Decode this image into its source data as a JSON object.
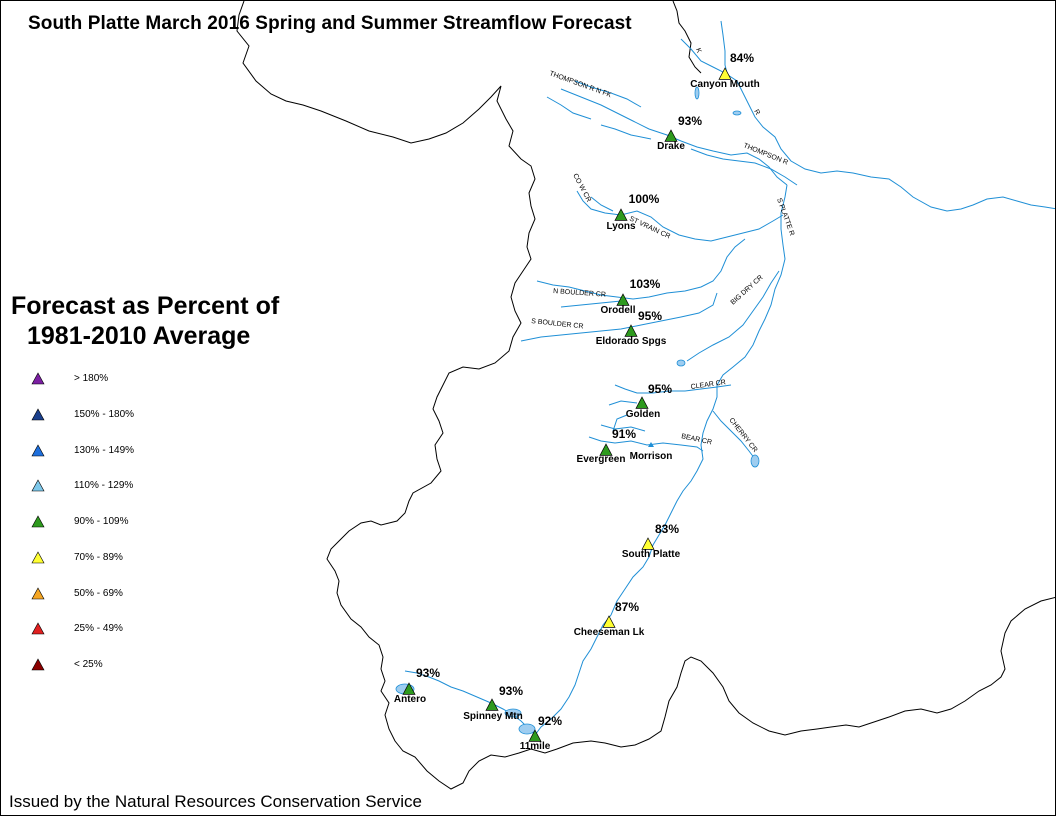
{
  "title": "South Platte March 2016 Spring and Summer Streamflow Forecast",
  "footer": "Issued by the Natural Resources Conservation Service",
  "legend": {
    "title_line1": "Forecast as Percent of",
    "title_line2": "1981-2010 Average",
    "items": [
      {
        "label": "> 180%",
        "color": "#7b1fa2"
      },
      {
        "label": "150% - 180%",
        "color": "#1a3f8c"
      },
      {
        "label": "130% - 149%",
        "color": "#1e6fdc"
      },
      {
        "label": "110% - 129%",
        "color": "#7ec8ea"
      },
      {
        "label": "90% - 109%",
        "color": "#2e9a1e"
      },
      {
        "label": "70% - 89%",
        "color": "#ffff33"
      },
      {
        "label": "50% - 69%",
        "color": "#f5a623"
      },
      {
        "label": "25% - 49%",
        "color": "#e02020"
      },
      {
        "label": "< 25%",
        "color": "#8b0000"
      }
    ]
  },
  "stations": [
    {
      "name": "Canyon Mouth",
      "percent": "84%",
      "category": "70% - 89%"
    },
    {
      "name": "Drake",
      "percent": "93%",
      "category": "90% - 109%"
    },
    {
      "name": "Lyons",
      "percent": "100%",
      "category": "90% - 109%"
    },
    {
      "name": "Orodell",
      "percent": "103%",
      "category": "90% - 109%"
    },
    {
      "name": "Eldorado Spgs",
      "percent": "95%",
      "category": "90% - 109%"
    },
    {
      "name": "Golden",
      "percent": "95%",
      "category": "90% - 109%"
    },
    {
      "name": "Evergreen",
      "percent": "91%",
      "category": "90% - 109%"
    },
    {
      "name": "Morrison",
      "percent": "",
      "category": ""
    },
    {
      "name": "South Platte",
      "percent": "83%",
      "category": "70% - 89%"
    },
    {
      "name": "Cheeseman Lk",
      "percent": "87%",
      "category": "70% - 89%"
    },
    {
      "name": "Antero",
      "percent": "93%",
      "category": "90% - 109%"
    },
    {
      "name": "Spinney Mtn",
      "percent": "93%",
      "category": "90% - 109%"
    },
    {
      "name": "11mile",
      "percent": "92%",
      "category": "90% - 109%"
    }
  ],
  "rivers": [
    "THOMPSON R N FK",
    "THOMPSON R",
    "CO W CR",
    "ST VRAIN CR",
    "S PLATTE R",
    "N BOULDER CR",
    "S BOULDER CR",
    "BIG DRY CR",
    "CLEAR CR",
    "BEAR CR",
    "CHERRY CR",
    "K",
    "R"
  ],
  "colors": {
    "river": "#1f8fd6",
    "boundary": "#000000",
    "lake": "#9ecdf0"
  }
}
